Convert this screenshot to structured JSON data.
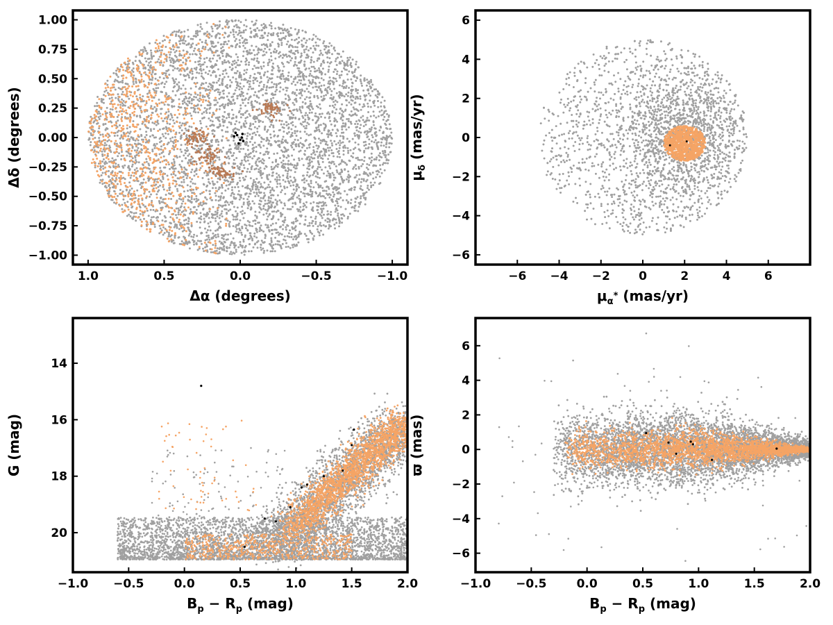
{
  "colors": {
    "field": "#a0a0a0",
    "members": "#f5a465",
    "dense": "#b97a55",
    "special": "#000000",
    "frame": "#000000"
  },
  "chart_data": [
    {
      "type": "scatter",
      "panel": "sky-positions",
      "xlabel": "Δα (degrees)",
      "ylabel": "Δδ (degrees)",
      "xlim": [
        1.1,
        -1.1
      ],
      "ylim": [
        -1.08,
        1.08
      ],
      "x_inverted": true,
      "xticks": [
        1.0,
        0.5,
        0.0,
        -0.5,
        -1.0
      ],
      "xtick_labels": [
        "1.0",
        "0.5",
        "0.0",
        "−0.5",
        "−1.0"
      ],
      "yticks": [
        1.0,
        0.75,
        0.5,
        0.25,
        0.0,
        -0.25,
        -0.5,
        -0.75,
        -1.0
      ],
      "ytick_labels": [
        "1.00",
        "0.75",
        "0.50",
        "0.25",
        "0.00",
        "−0.25",
        "−0.50",
        "−0.75",
        "−1.00"
      ],
      "grid": false,
      "series": [
        {
          "role": "field",
          "description": "uniform disk of radius 1.0 deg centered at (0,0)",
          "center": [
            0.0,
            0.0
          ],
          "radius": 1.0
        },
        {
          "role": "members",
          "description": "concentrated on eastern half (Δα > 0), patchy",
          "extent_x": [
            0.15,
            1.0
          ],
          "extent_y": [
            -0.85,
            1.0
          ]
        },
        {
          "role": "dense",
          "clumps": [
            [
              0.28,
              0.0
            ],
            [
              0.12,
              -0.3
            ],
            [
              0.22,
              -0.14
            ],
            [
              -0.2,
              0.24
            ]
          ]
        },
        {
          "role": "special",
          "points": [
            [
              0.03,
              0.04
            ],
            [
              0.0,
              -0.02
            ],
            [
              -0.01,
              0.0
            ],
            [
              0.02,
              0.02
            ],
            [
              -0.02,
              -0.03
            ],
            [
              0.01,
              -0.05
            ],
            [
              0.04,
              0.01
            ],
            [
              -0.015,
              0.03
            ]
          ]
        }
      ]
    },
    {
      "type": "scatter",
      "panel": "proper-motion",
      "xlabel": "μα* (mas/yr)",
      "ylabel": "μδ (mas/yr)",
      "xlim": [
        -8,
        8
      ],
      "ylim": [
        -6.5,
        6.5
      ],
      "xticks": [
        -6,
        -4,
        -2,
        0,
        2,
        4,
        6
      ],
      "xtick_labels": [
        "−6",
        "−4",
        "−2",
        "0",
        "2",
        "4",
        "6"
      ],
      "yticks": [
        6,
        4,
        2,
        0,
        -2,
        -4,
        -6
      ],
      "ytick_labels": [
        "6",
        "4",
        "2",
        "0",
        "−2",
        "−4",
        "−6"
      ],
      "grid": false,
      "series": [
        {
          "role": "field",
          "description": "disk of radius 5 mas/yr centered near (0,0), denser toward (2,0)",
          "center": [
            0.0,
            0.0
          ],
          "radius": 5.0
        },
        {
          "role": "members",
          "description": "compact clump",
          "center": [
            2.0,
            -0.3
          ],
          "radius": [
            1.0,
            0.9
          ]
        },
        {
          "role": "special",
          "points": [
            [
              1.3,
              -0.4
            ],
            [
              2.1,
              -0.2
            ]
          ]
        }
      ]
    },
    {
      "type": "scatter",
      "panel": "color-magnitude",
      "xlabel": "Bp − Rp (mag)",
      "ylabel": "G (mag)",
      "xlim": [
        -1.0,
        2.0
      ],
      "ylim": [
        21.4,
        12.4
      ],
      "y_inverted": true,
      "xticks": [
        -1.0,
        -0.5,
        0.0,
        0.5,
        1.0,
        1.5,
        2.0
      ],
      "xtick_labels": [
        "−1.0",
        "−0.5",
        "0.0",
        "0.5",
        "1.0",
        "1.5",
        "2.0"
      ],
      "yticks": [
        20,
        18,
        16,
        14
      ],
      "ytick_labels": [
        "20",
        "18",
        "16",
        "14"
      ],
      "grid": false,
      "series": [
        {
          "role": "field",
          "description": "faint band at G≈20–21 spanning color −0.6 to 2.0 plus diagonal sequence"
        },
        {
          "role": "members",
          "description": "sequence from (0.8,20.3) to (2.0,16.0)"
        },
        {
          "role": "special",
          "points": [
            [
              0.54,
              20.5
            ],
            [
              0.72,
              19.5
            ],
            [
              0.82,
              19.6
            ],
            [
              0.95,
              19.1
            ],
            [
              1.05,
              18.4
            ],
            [
              1.1,
              18.3
            ],
            [
              1.42,
              17.8
            ],
            [
              1.5,
              16.9
            ],
            [
              1.52,
              16.35
            ],
            [
              0.15,
              14.8
            ],
            [
              1.25,
              18.0
            ]
          ]
        }
      ]
    },
    {
      "type": "scatter",
      "panel": "parallax",
      "xlabel": "Bp − Rp (mag)",
      "ylabel": "ϖ (mas)",
      "xlim": [
        -1.0,
        2.0
      ],
      "ylim": [
        -7.1,
        7.6
      ],
      "xticks": [
        -1.0,
        -0.5,
        0.0,
        0.5,
        1.0,
        1.5,
        2.0
      ],
      "xtick_labels": [
        "−1.0",
        "−0.5",
        "0.0",
        "0.5",
        "1.0",
        "1.5",
        "2.0"
      ],
      "yticks": [
        6,
        4,
        2,
        0,
        -2,
        -4,
        -6
      ],
      "ytick_labels": [
        "6",
        "4",
        "2",
        "0",
        "−2",
        "−4",
        "−6"
      ],
      "grid": false,
      "series": [
        {
          "role": "field",
          "description": "band around ϖ=0, spread narrowing toward red colors"
        },
        {
          "role": "members",
          "description": "band around ϖ=0 from color −0.2 to 2.0, narrow at red end"
        },
        {
          "role": "special",
          "points": [
            [
              0.53,
              0.95
            ],
            [
              0.73,
              0.4
            ],
            [
              0.8,
              -0.25
            ],
            [
              0.93,
              0.45
            ],
            [
              1.12,
              -0.6
            ],
            [
              1.7,
              0.05
            ],
            [
              0.95,
              0.3
            ]
          ]
        }
      ]
    }
  ]
}
